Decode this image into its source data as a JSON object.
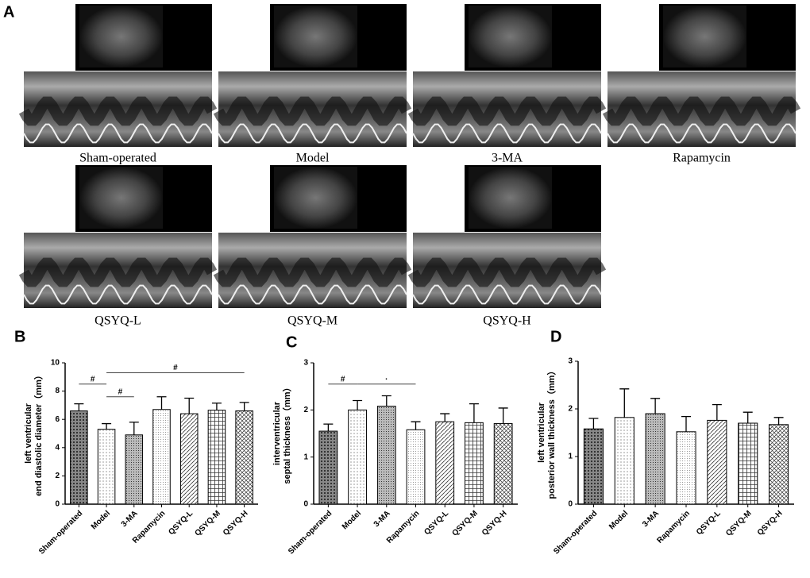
{
  "figure": {
    "panel_labels": [
      "A",
      "B",
      "C",
      "D"
    ],
    "image_captions": [
      "Sham-operated",
      "Model",
      "3-MA",
      "Rapamycin",
      "QSYQ-L",
      "QSYQ-M",
      "QSYQ-H"
    ]
  },
  "chart_data": [
    {
      "type": "bar",
      "ylabel": [
        "left ventricular",
        "end diastolic diameter（mm）"
      ],
      "categories": [
        "Sham-operated",
        "Model",
        "3-MA",
        "Rapamycin",
        "QSYQ-L",
        "QSYQ-M",
        "QSYQ-H"
      ],
      "values": [
        6.6,
        5.3,
        4.9,
        6.7,
        6.4,
        6.65,
        6.6
      ],
      "errors": [
        0.5,
        0.4,
        0.9,
        0.9,
        1.1,
        0.5,
        0.6
      ],
      "ylim": [
        0,
        10
      ],
      "yticks": [
        0,
        2,
        4,
        6,
        8,
        10
      ],
      "annotations": [
        "#",
        "#",
        "#"
      ]
    },
    {
      "type": "bar",
      "ylabel": [
        "interventricular",
        "septal thickness（mm）"
      ],
      "categories": [
        "Sham-operated",
        "Model",
        "3-MA",
        "Rapamycin",
        "QSYQ-L",
        "QSYQ-M",
        "QSYQ-H"
      ],
      "values": [
        1.55,
        2.0,
        2.08,
        1.58,
        1.75,
        1.73,
        1.71
      ],
      "errors": [
        0.15,
        0.2,
        0.22,
        0.17,
        0.17,
        0.4,
        0.33
      ],
      "ylim": [
        0,
        3
      ],
      "yticks": [
        0,
        1,
        2,
        3
      ],
      "annotations": [
        "#",
        "·"
      ]
    },
    {
      "type": "bar",
      "ylabel": [
        "left ventricular",
        "posterior wall thickness（mm）"
      ],
      "categories": [
        "Sham-operated",
        "Model",
        "3-MA",
        "Rapamycin",
        "QSYQ-L",
        "QSYQ-M",
        "QSYQ-H"
      ],
      "values": [
        1.58,
        1.82,
        1.9,
        1.52,
        1.76,
        1.7,
        1.67
      ],
      "errors": [
        0.22,
        0.6,
        0.32,
        0.32,
        0.33,
        0.23,
        0.15
      ],
      "ylim": [
        0,
        3
      ],
      "yticks": [
        0,
        1,
        2,
        3
      ]
    }
  ]
}
